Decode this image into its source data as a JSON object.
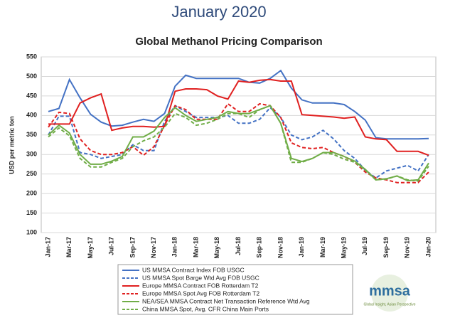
{
  "header": "January 2020",
  "logo": {
    "name": "mmsa",
    "tagline": "Global Insight, Asian Perspective"
  },
  "chart_data": {
    "type": "line",
    "title": "Global Methanol Pricing Comparison",
    "ylabel": "USD per metric ton",
    "categories": [
      "Jan-17",
      null,
      "Mar-17",
      null,
      "May-17",
      null,
      "Jul-17",
      null,
      "Sep-17",
      null,
      "Nov-17",
      null,
      "Jan-18",
      null,
      "Mar-18",
      null,
      "May-18",
      null,
      "Jul-18",
      null,
      "Sep-18",
      null,
      "Nov-18",
      null,
      "Jan-19",
      null,
      "Mar-19",
      null,
      "May-19",
      null,
      "Jul-19",
      null,
      "Sep-19",
      null,
      "Nov-19",
      null,
      "Jan-20"
    ],
    "ylim": [
      100,
      550
    ],
    "yticks": [
      100,
      150,
      200,
      250,
      300,
      350,
      400,
      450,
      500,
      550
    ],
    "grid": true,
    "series": [
      {
        "name": "US MMSA Contract Index FOB USGC",
        "color": "#4472c4",
        "dashed": false,
        "values": [
          410,
          418,
          492,
          445,
          403,
          383,
          373,
          375,
          383,
          390,
          385,
          405,
          475,
          503,
          495,
          495,
          495,
          495,
          495,
          485,
          483,
          495,
          515,
          470,
          440,
          432,
          432,
          432,
          428,
          410,
          388,
          343,
          340,
          340,
          340,
          340,
          341
        ]
      },
      {
        "name": "US MMSA Spot Barge Wtd Avg FOB USGC",
        "color": "#4472c4",
        "dashed": true,
        "values": [
          350,
          398,
          398,
          305,
          300,
          290,
          295,
          300,
          325,
          310,
          310,
          385,
          425,
          410,
          395,
          395,
          395,
          400,
          380,
          380,
          390,
          420,
          395,
          350,
          338,
          345,
          362,
          340,
          310,
          290,
          260,
          240,
          258,
          265,
          272,
          258,
          300
        ]
      },
      {
        "name": "Europe MMSA Contract FOB Rotterdam T2",
        "color": "#e02020",
        "dashed": false,
        "values": [
          378,
          378,
          378,
          432,
          445,
          455,
          362,
          368,
          372,
          372,
          370,
          372,
          462,
          468,
          468,
          466,
          450,
          442,
          488,
          485,
          490,
          492,
          488,
          488,
          402,
          400,
          398,
          396,
          393,
          396,
          345,
          340,
          338,
          308,
          308,
          308,
          298
        ]
      },
      {
        "name": "Europe MMSA Spot Avg FOB Rotterdam T2",
        "color": "#e02020",
        "dashed": true,
        "values": [
          370,
          408,
          405,
          340,
          310,
          300,
          300,
          305,
          320,
          298,
          320,
          375,
          425,
          415,
          390,
          390,
          390,
          430,
          410,
          410,
          430,
          425,
          395,
          330,
          318,
          315,
          318,
          305,
          295,
          280,
          255,
          240,
          235,
          228,
          228,
          228,
          255
        ]
      },
      {
        "name": "NEA/SEA MMSA Contract Net Transaction Reference Wtd Avg",
        "color": "#70ad47",
        "dashed": false,
        "values": [
          350,
          375,
          355,
          300,
          275,
          275,
          283,
          295,
          345,
          345,
          360,
          395,
          420,
          400,
          385,
          390,
          395,
          410,
          405,
          405,
          415,
          425,
          380,
          290,
          282,
          290,
          305,
          305,
          295,
          283,
          262,
          235,
          238,
          245,
          233,
          235,
          278
        ]
      },
      {
        "name": "China MMSA Spot, Avg. CFR China Main Ports",
        "color": "#70ad47",
        "dashed": true,
        "values": [
          345,
          368,
          348,
          290,
          268,
          268,
          280,
          290,
          320,
          335,
          345,
          370,
          405,
          395,
          375,
          380,
          390,
          405,
          405,
          395,
          415,
          425,
          380,
          280,
          280,
          290,
          305,
          300,
          288,
          280,
          260,
          235,
          237,
          245,
          235,
          232,
          270
        ]
      }
    ]
  }
}
